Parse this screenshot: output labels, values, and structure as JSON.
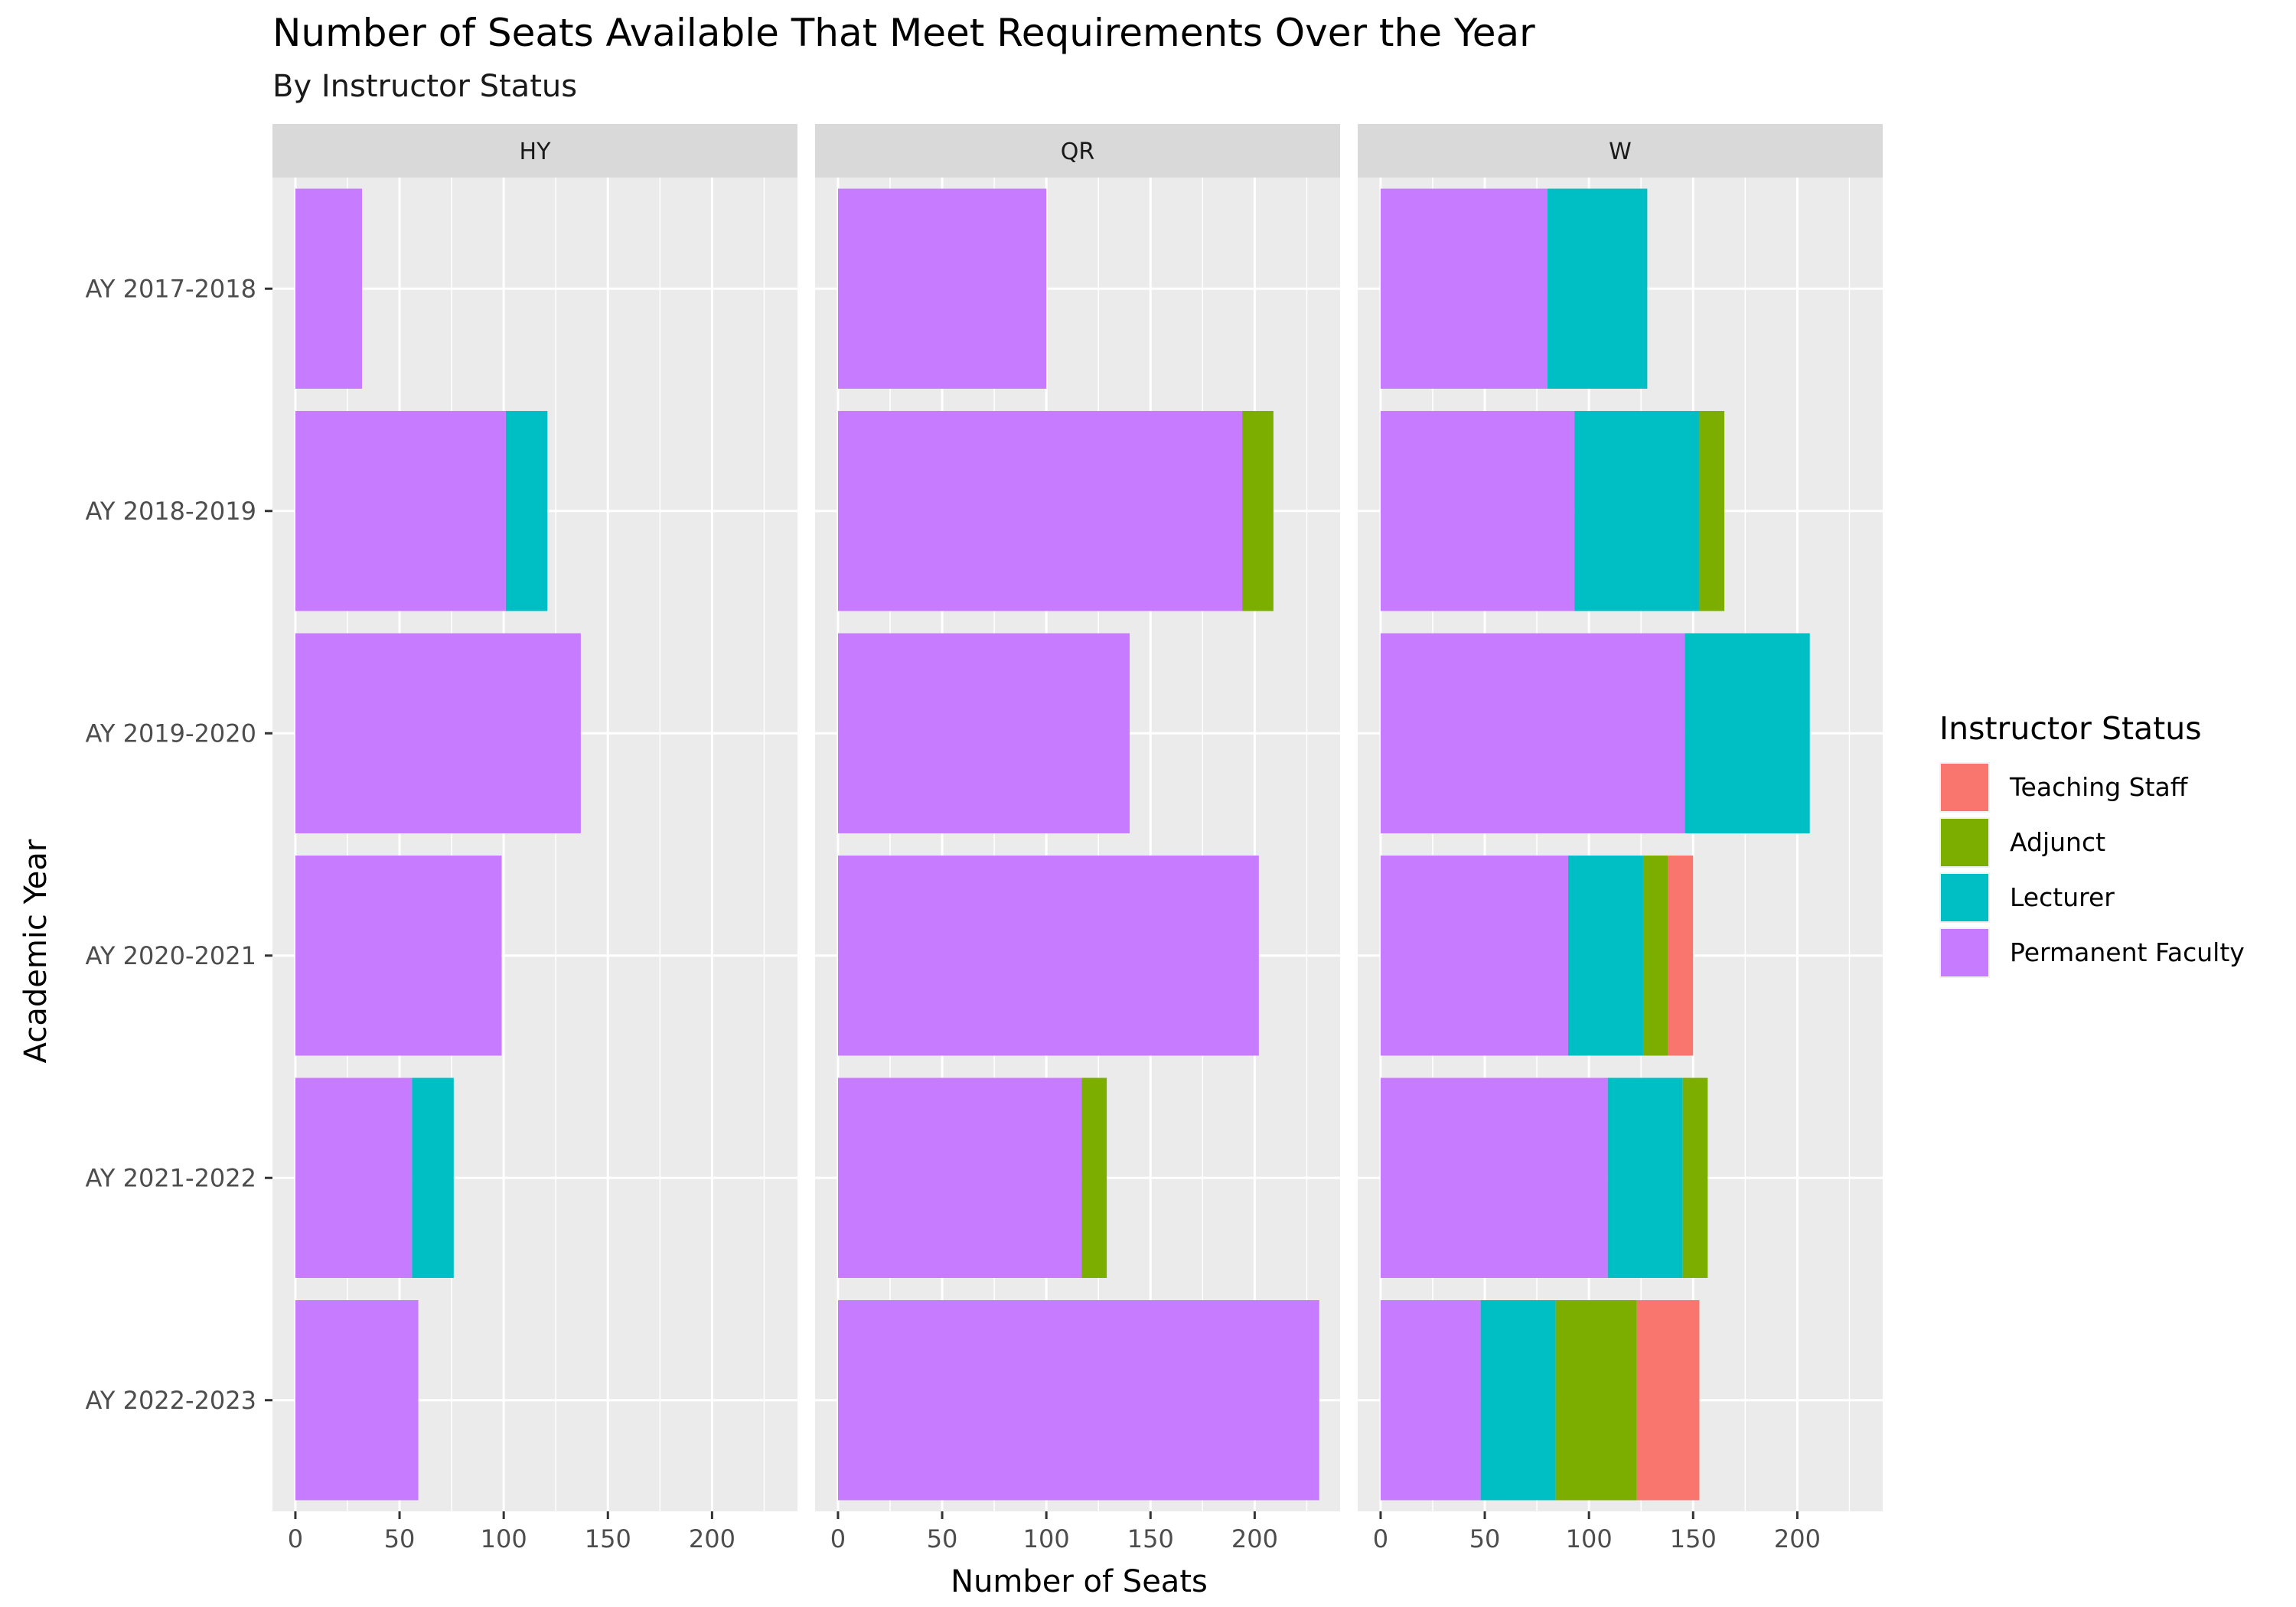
{
  "chart_data": {
    "type": "bar",
    "orientation": "horizontal",
    "stacked": true,
    "faceted": true,
    "title": "Number of Seats Available That Meet Requirements Over the Year",
    "subtitle": "By Instructor Status",
    "xlabel": "Number of Seats",
    "ylabel": "Academic Year",
    "xlim": [
      -11,
      241
    ],
    "x_ticks": [
      0,
      50,
      100,
      150,
      200
    ],
    "grid": true,
    "legend": {
      "title": "Instructor Status",
      "position": "right",
      "entries": [
        "Teaching Staff",
        "Adjunct",
        "Lecturer",
        "Permanent Faculty"
      ]
    },
    "categories": [
      "AY 2017-2018",
      "AY 2018-2019",
      "AY 2019-2020",
      "AY 2020-2021",
      "AY 2021-2022",
      "AY 2022-2023"
    ],
    "stack_order": [
      "Permanent Faculty",
      "Lecturer",
      "Adjunct",
      "Teaching Staff"
    ],
    "colors": {
      "Teaching Staff": "#F8766D",
      "Adjunct": "#7CAE00",
      "Lecturer": "#00BFC4",
      "Permanent Faculty": "#C77CFF"
    },
    "facets": [
      {
        "label": "HY",
        "series": [
          {
            "name": "Permanent Faculty",
            "values": [
              32,
              101,
              137,
              99,
              56,
              59
            ]
          },
          {
            "name": "Lecturer",
            "values": [
              0,
              20,
              0,
              0,
              20,
              0
            ]
          },
          {
            "name": "Adjunct",
            "values": [
              0,
              0,
              0,
              0,
              0,
              0
            ]
          },
          {
            "name": "Teaching Staff",
            "values": [
              0,
              0,
              0,
              0,
              0,
              0
            ]
          }
        ]
      },
      {
        "label": "QR",
        "series": [
          {
            "name": "Permanent Faculty",
            "values": [
              100,
              194,
              140,
              202,
              117,
              231
            ]
          },
          {
            "name": "Lecturer",
            "values": [
              0,
              0,
              0,
              0,
              0,
              0
            ]
          },
          {
            "name": "Adjunct",
            "values": [
              0,
              15,
              0,
              0,
              12,
              0
            ]
          },
          {
            "name": "Teaching Staff",
            "values": [
              0,
              0,
              0,
              0,
              0,
              0
            ]
          }
        ]
      },
      {
        "label": "W",
        "series": [
          {
            "name": "Permanent Faculty",
            "values": [
              80,
              93,
              146,
              90,
              109,
              48
            ]
          },
          {
            "name": "Lecturer",
            "values": [
              48,
              60,
              60,
              36,
              36,
              36
            ]
          },
          {
            "name": "Adjunct",
            "values": [
              0,
              12,
              0,
              12,
              12,
              39
            ]
          },
          {
            "name": "Teaching Staff",
            "values": [
              0,
              0,
              0,
              12,
              0,
              30
            ]
          }
        ]
      }
    ]
  }
}
